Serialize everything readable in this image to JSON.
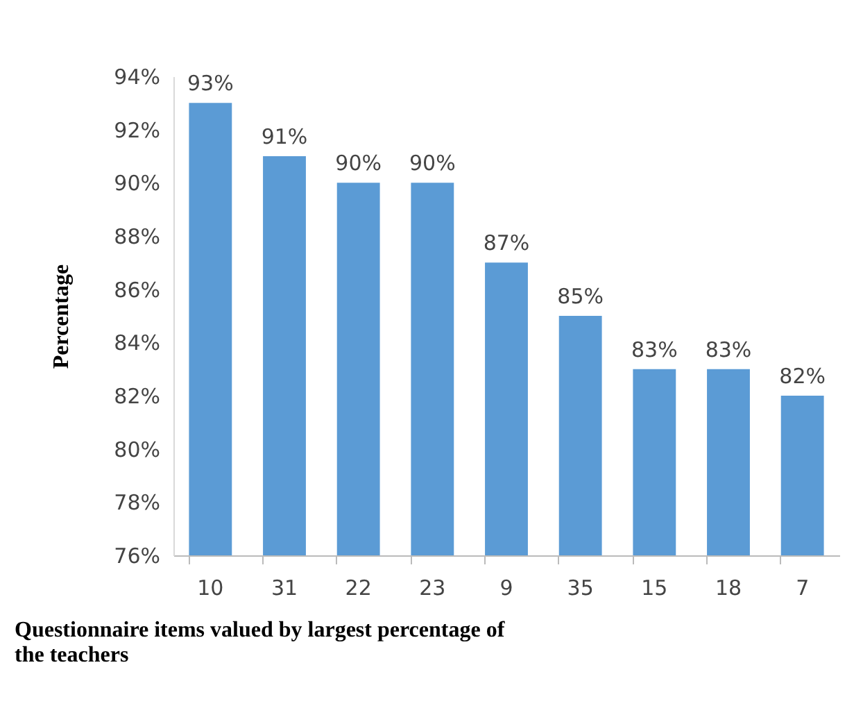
{
  "chart_data": {
    "type": "bar",
    "xlabel": "Questionnaire items valued by largest percentage of the teachers",
    "ylabel": "Percentage",
    "categories": [
      "10",
      "31",
      "22",
      "23",
      "9",
      "35",
      "15",
      "18",
      "7"
    ],
    "values": [
      93,
      91,
      90,
      90,
      87,
      85,
      83,
      83,
      82
    ],
    "value_labels": [
      "93%",
      "91%",
      "90%",
      "90%",
      "87%",
      "85%",
      "83%",
      "83%",
      "82%"
    ],
    "color": "#5b9bd5",
    "ylim": [
      76,
      94
    ],
    "yticks": [
      {
        "value": 76,
        "label": "76%"
      },
      {
        "value": 78,
        "label": "78%"
      },
      {
        "value": 80,
        "label": "80%"
      },
      {
        "value": 82,
        "label": "82%"
      },
      {
        "value": 84,
        "label": "84%"
      },
      {
        "value": 86,
        "label": "86%"
      },
      {
        "value": 88,
        "label": "88%"
      },
      {
        "value": 90,
        "label": "90%"
      },
      {
        "value": 92,
        "label": "92%"
      },
      {
        "value": 94,
        "label": "94%"
      }
    ],
    "grid": false
  }
}
